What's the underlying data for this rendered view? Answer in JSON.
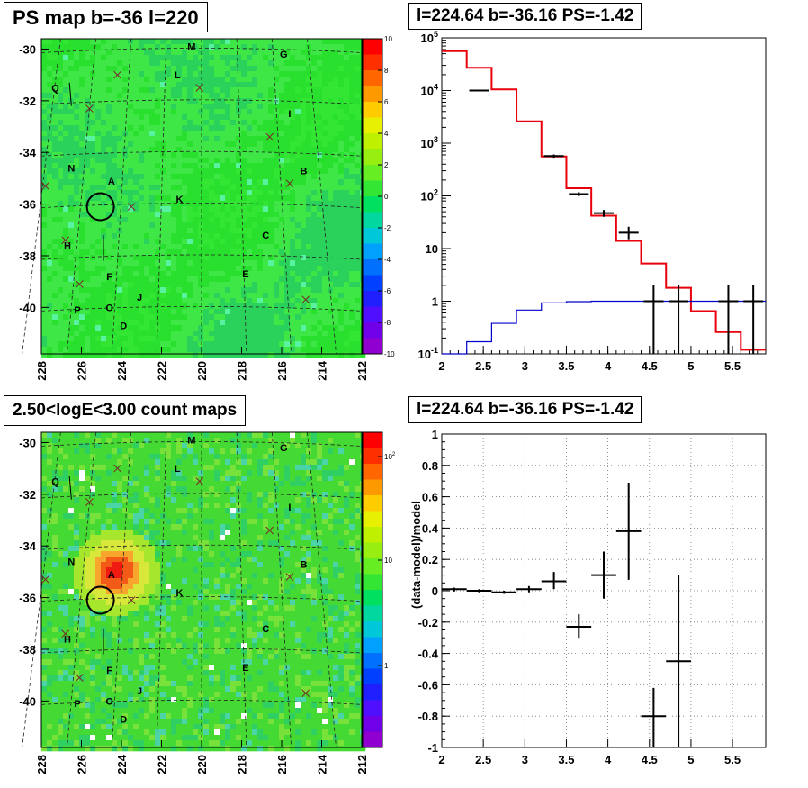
{
  "titles": {
    "tl": "PS map b=-36 l=220",
    "tr": "l=224.64 b=-36.16 PS=-1.42",
    "bl": "2.50<logE<3.00 count maps",
    "br": "l=224.64 b=-36.16 PS=-1.42"
  },
  "chart_data": [
    {
      "type": "heatmap",
      "id": "ps-map",
      "title": "PS map b=-36 l=220",
      "x_ticks": [
        "228",
        "226",
        "224",
        "222",
        "220",
        "218",
        "216",
        "214",
        "212"
      ],
      "y_ticks": [
        "-30",
        "-32",
        "-34",
        "-36",
        "-38",
        "-40"
      ],
      "xlim": [
        228,
        212
      ],
      "ylim": [
        -41.8,
        -29.6
      ],
      "zlim": [
        -10,
        10
      ],
      "z_ticks": [
        "10",
        "8",
        "6",
        "4",
        "2",
        "0",
        "-2",
        "-4",
        "-6",
        "-8",
        "-10"
      ],
      "background_value": 0,
      "sources": [
        {
          "label": "M",
          "l": 220.5,
          "b": -29.9
        },
        {
          "label": "G",
          "l": 215.9,
          "b": -30.2
        },
        {
          "label": "L",
          "l": 221.2,
          "b": -31.0
        },
        {
          "label": "Q",
          "l": 227.3,
          "b": -31.5
        },
        {
          "label": "I",
          "l": 215.6,
          "b": -32.5
        },
        {
          "label": "N",
          "l": 226.5,
          "b": -34.6
        },
        {
          "label": "B",
          "l": 214.9,
          "b": -34.7
        },
        {
          "label": "A",
          "l": 224.5,
          "b": -35.1
        },
        {
          "label": "K",
          "l": 221.1,
          "b": -35.8
        },
        {
          "label": "C",
          "l": 216.8,
          "b": -37.2
        },
        {
          "label": "H",
          "l": 226.7,
          "b": -37.6
        },
        {
          "label": "E",
          "l": 217.8,
          "b": -38.7
        },
        {
          "label": "F",
          "l": 224.6,
          "b": -38.8
        },
        {
          "label": "J",
          "l": 223.1,
          "b": -39.6
        },
        {
          "label": "P",
          "l": 226.2,
          "b": -40.1
        },
        {
          "label": "O",
          "l": 224.6,
          "b": -40.0
        },
        {
          "label": "D",
          "l": 223.9,
          "b": -40.7
        }
      ],
      "markers": [
        {
          "l": 224.2,
          "b": -31.0
        },
        {
          "l": 220.1,
          "b": -31.5
        },
        {
          "l": 225.6,
          "b": -32.3
        },
        {
          "l": 216.6,
          "b": -33.4
        },
        {
          "l": 227.8,
          "b": -35.3
        },
        {
          "l": 215.6,
          "b": -35.2
        },
        {
          "l": 223.5,
          "b": -36.1
        },
        {
          "l": 226.8,
          "b": -37.4
        },
        {
          "l": 226.1,
          "b": -39.1
        },
        {
          "l": 214.8,
          "b": -39.7
        }
      ],
      "target_circle": {
        "l": 225.05,
        "b": -36.1
      }
    },
    {
      "type": "line",
      "id": "spectrum",
      "title": "l=224.64 b=-36.16 PS=-1.42",
      "x_scale": "linear",
      "y_scale": "log",
      "xlim": [
        2,
        5.9
      ],
      "ylim": [
        0.1,
        100000
      ],
      "x_ticks": [
        "2",
        "2.5",
        "3",
        "3.5",
        "4",
        "4.5",
        "5",
        "5.5"
      ],
      "y_ticks": [
        "10^-1",
        "1",
        "10",
        "10^2",
        "10^3",
        "10^4",
        "10^5"
      ],
      "bin_edges": [
        2.0,
        2.3,
        2.6,
        2.9,
        3.2,
        3.5,
        3.8,
        4.1,
        4.4,
        4.7,
        5.0,
        5.3,
        5.6,
        5.9
      ],
      "series": [
        {
          "color": "#e8000b",
          "type": "step",
          "values": [
            56000,
            27000,
            10500,
            2600,
            560,
            140,
            42,
            14,
            5.2,
            1.8,
            0.65,
            0.26,
            0.12
          ]
        },
        {
          "color": "#0000cc",
          "type": "step",
          "values": [
            0.1,
            0.17,
            0.38,
            0.68,
            0.93,
            0.98,
            1.0,
            1.0,
            1.0,
            1.0,
            1.0,
            1.0,
            1.0
          ]
        },
        {
          "color": "#000000",
          "type": "points",
          "points": [
            {
              "x": 2.45,
              "y": 10000,
              "lo": 9800,
              "hi": 10200
            },
            {
              "x": 3.35,
              "y": 570,
              "lo": 530,
              "hi": 610
            },
            {
              "x": 3.65,
              "y": 108,
              "lo": 98,
              "hi": 118
            },
            {
              "x": 3.95,
              "y": 47,
              "lo": 40,
              "hi": 54
            },
            {
              "x": 4.25,
              "y": 20,
              "lo": 15,
              "hi": 26
            },
            {
              "x": 4.55,
              "y": 1.0,
              "lo": 0.1,
              "hi": 2.0
            },
            {
              "x": 4.85,
              "y": 1.0,
              "lo": 0.1,
              "hi": 2.0
            },
            {
              "x": 5.45,
              "y": 1.0,
              "lo": 0.1,
              "hi": 2.0
            },
            {
              "x": 5.75,
              "y": 1.0,
              "lo": 0.1,
              "hi": 2.0
            }
          ]
        }
      ]
    },
    {
      "type": "heatmap",
      "id": "count-map",
      "title": "2.50<logE<3.00 count maps",
      "x_ticks": [
        "228",
        "226",
        "224",
        "222",
        "220",
        "218",
        "216",
        "214",
        "212"
      ],
      "y_ticks": [
        "-30",
        "-32",
        "-34",
        "-36",
        "-38",
        "-40"
      ],
      "xlim": [
        228,
        212
      ],
      "ylim": [
        -41.8,
        -29.6
      ],
      "z_ticks": [
        "10^2",
        "10",
        "1"
      ],
      "z_scale": "log",
      "bright_source": {
        "l": 224.4,
        "b": -34.9
      },
      "target_circle": {
        "l": 225.05,
        "b": -36.1
      }
    },
    {
      "type": "scatter",
      "id": "residuals",
      "title": "l=224.64 b=-36.16 PS=-1.42",
      "ylabel": "(data-model)/model",
      "xlim": [
        2,
        5.9
      ],
      "ylim": [
        -1,
        1
      ],
      "x_ticks": [
        "2",
        "2.5",
        "3",
        "3.5",
        "4",
        "4.5",
        "5",
        "5.5"
      ],
      "y_ticks": [
        "1",
        "0.8",
        "0.6",
        "0.4",
        "0.2",
        "0",
        "-0.2",
        "-0.4",
        "-0.6",
        "-0.8",
        "-1"
      ],
      "grid": true,
      "points": [
        {
          "x": 2.15,
          "y": 0.01,
          "ex": 0.15,
          "lo": -0.005,
          "hi": 0.02
        },
        {
          "x": 2.45,
          "y": 0.0,
          "ex": 0.15,
          "lo": -0.01,
          "hi": 0.01
        },
        {
          "x": 2.75,
          "y": -0.01,
          "ex": 0.15,
          "lo": -0.02,
          "hi": 0.0
        },
        {
          "x": 3.05,
          "y": 0.01,
          "ex": 0.15,
          "lo": -0.01,
          "hi": 0.03
        },
        {
          "x": 3.35,
          "y": 0.06,
          "ex": 0.15,
          "lo": 0.01,
          "hi": 0.12
        },
        {
          "x": 3.65,
          "y": -0.23,
          "ex": 0.15,
          "lo": -0.3,
          "hi": -0.15
        },
        {
          "x": 3.95,
          "y": 0.1,
          "ex": 0.15,
          "lo": -0.05,
          "hi": 0.25
        },
        {
          "x": 4.25,
          "y": 0.38,
          "ex": 0.15,
          "lo": 0.07,
          "hi": 0.69
        },
        {
          "x": 4.55,
          "y": -0.8,
          "ex": 0.15,
          "lo": -1.0,
          "hi": -0.62
        },
        {
          "x": 4.85,
          "y": -0.45,
          "ex": 0.15,
          "lo": -1.0,
          "hi": 0.1
        }
      ]
    }
  ]
}
